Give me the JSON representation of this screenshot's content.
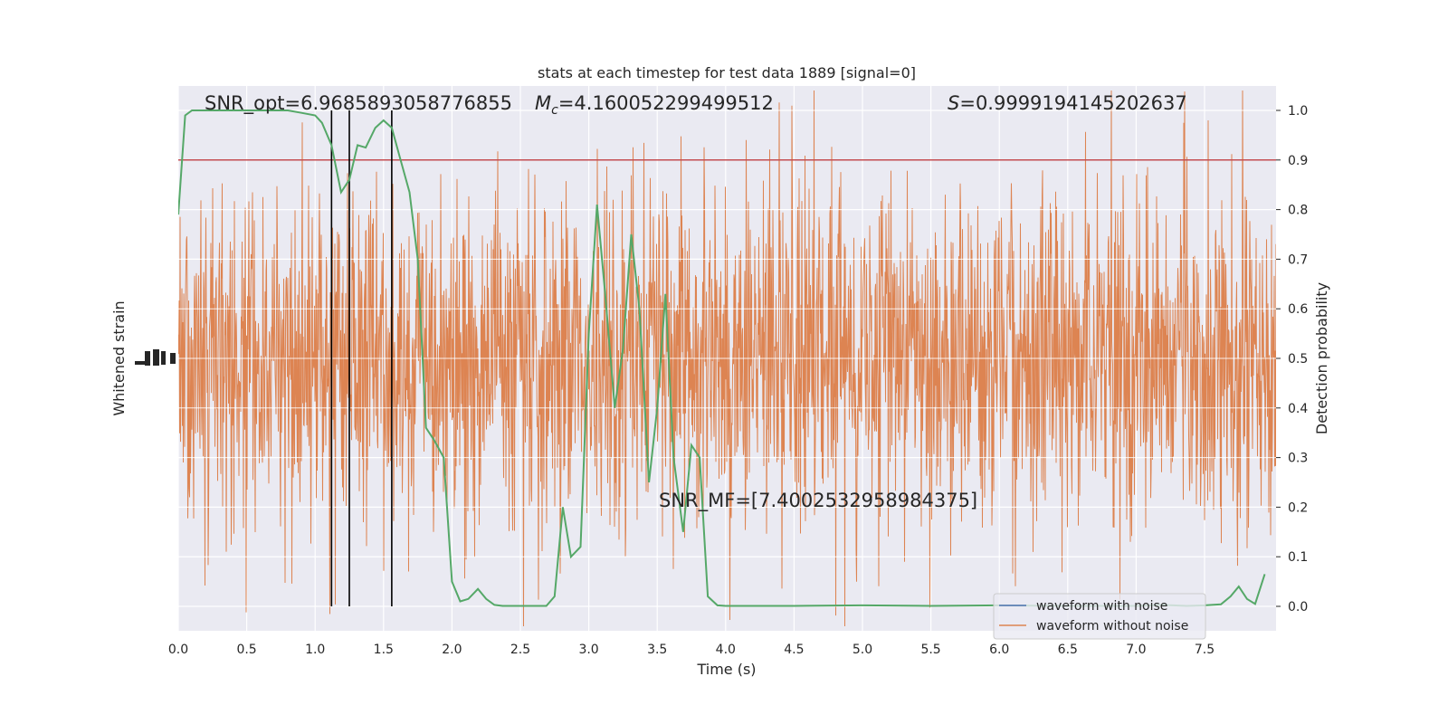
{
  "chart_data": {
    "type": "line",
    "title": "stats at each timestep for test data 1889 [signal=0]",
    "xlabel": "Time (s)",
    "ylabel_left": "Whitened strain",
    "ylabel_right": "Detection probability",
    "xlim": [
      0.0,
      8.0
    ],
    "ylim_right": [
      -0.05,
      1.05
    ],
    "x_ticks": [
      "0.0",
      "0.5",
      "1.0",
      "1.5",
      "2.0",
      "2.5",
      "3.0",
      "3.5",
      "4.0",
      "4.5",
      "5.0",
      "5.5",
      "6.0",
      "6.5",
      "7.0",
      "7.5"
    ],
    "y_ticks_right": [
      "0.0",
      "0.1",
      "0.2",
      "0.3",
      "0.4",
      "0.5",
      "0.6",
      "0.7",
      "0.8",
      "0.9",
      "1.0"
    ],
    "grid": true,
    "legend_position": "lower-right",
    "annotations": {
      "snr_opt": "SNR_opt=6.9685893058776855",
      "mc_symbol": "M",
      "mc_sub": "c",
      "mc_value": "=4.160052299499512",
      "s_symbol": "S",
      "s_value": "=0.9999194145202637",
      "snr_mf": "SNR_MF=[7.4002532958984375]"
    },
    "threshold": 0.9,
    "vertical_lines": [
      1.12,
      1.25,
      1.56
    ],
    "series": [
      {
        "name": "waveform with noise",
        "color": "#4c72b0"
      },
      {
        "name": "waveform without noise",
        "color": "#dd8452"
      }
    ],
    "probability": {
      "color": "#55a868",
      "x": [
        0.0,
        0.05,
        0.1,
        0.2,
        0.3,
        0.4,
        0.5,
        0.6,
        0.7,
        0.8,
        0.9,
        1.0,
        1.05,
        1.12,
        1.19,
        1.25,
        1.31,
        1.37,
        1.44,
        1.5,
        1.56,
        1.62,
        1.69,
        1.75,
        1.81,
        1.87,
        1.94,
        2.0,
        2.06,
        2.12,
        2.19,
        2.25,
        2.31,
        2.37,
        2.44,
        2.5,
        2.56,
        2.62,
        2.69,
        2.75,
        2.81,
        2.87,
        2.94,
        3.0,
        3.06,
        3.12,
        3.19,
        3.25,
        3.31,
        3.37,
        3.44,
        3.5,
        3.56,
        3.62,
        3.69,
        3.75,
        3.81,
        3.87,
        3.94,
        4.0,
        4.5,
        5.0,
        5.5,
        6.0,
        6.5,
        7.0,
        7.19,
        7.37,
        7.5,
        7.62,
        7.69,
        7.75,
        7.81,
        7.87,
        7.94
      ],
      "y": [
        0.79,
        0.99,
        1.0,
        1.0,
        1.0,
        1.0,
        1.0,
        1.0,
        1.0,
        1.0,
        0.995,
        0.99,
        0.975,
        0.93,
        0.835,
        0.86,
        0.93,
        0.925,
        0.965,
        0.98,
        0.965,
        0.905,
        0.835,
        0.7,
        0.36,
        0.335,
        0.3,
        0.05,
        0.01,
        0.015,
        0.035,
        0.015,
        0.003,
        0.001,
        0.001,
        0.001,
        0.001,
        0.001,
        0.001,
        0.02,
        0.2,
        0.1,
        0.12,
        0.55,
        0.81,
        0.63,
        0.4,
        0.52,
        0.75,
        0.6,
        0.25,
        0.4,
        0.63,
        0.3,
        0.15,
        0.325,
        0.3,
        0.02,
        0.002,
        0.001,
        0.001,
        0.002,
        0.001,
        0.002,
        0.001,
        0.001,
        0.003,
        0.001,
        0.002,
        0.004,
        0.02,
        0.04,
        0.015,
        0.005,
        0.065
      ]
    }
  }
}
